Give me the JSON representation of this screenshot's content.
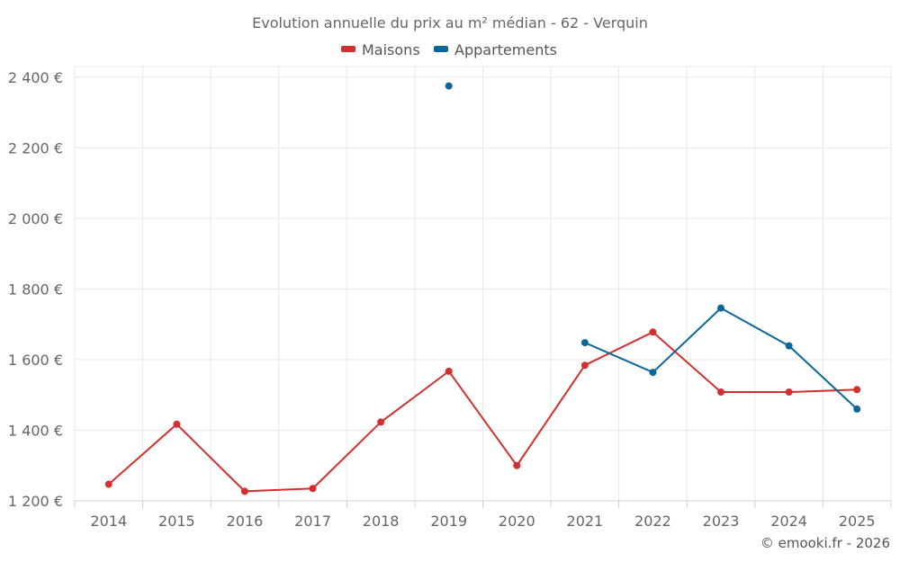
{
  "chart_data": {
    "type": "line",
    "title": "Evolution annuelle du prix au m² médian - 62 - Verquin",
    "categories": [
      "2014",
      "2015",
      "2016",
      "2017",
      "2018",
      "2019",
      "2020",
      "2021",
      "2022",
      "2023",
      "2024",
      "2025"
    ],
    "y_tick_labels": [
      "1 200 €",
      "1 400 €",
      "1 600 €",
      "1 800 €",
      "2 000 €",
      "2 200 €",
      "2 400 €"
    ],
    "y_ticks": [
      1200,
      1400,
      1600,
      1800,
      2000,
      2200,
      2400
    ],
    "ylim": [
      1200,
      2430
    ],
    "grid": true,
    "legend_position": "top-center",
    "series": [
      {
        "name": "Maisons",
        "color": "#d32f2f",
        "values": [
          1247,
          1417,
          1227,
          1235,
          1423,
          1567,
          1300,
          1584,
          1678,
          1508,
          1508,
          1515
        ]
      },
      {
        "name": "Appartements",
        "color": "#0d6699",
        "values": [
          null,
          null,
          null,
          null,
          null,
          2375,
          null,
          1648,
          1564,
          1746,
          1639,
          1460
        ]
      }
    ]
  },
  "credit": "© emooki.fr - 2026"
}
